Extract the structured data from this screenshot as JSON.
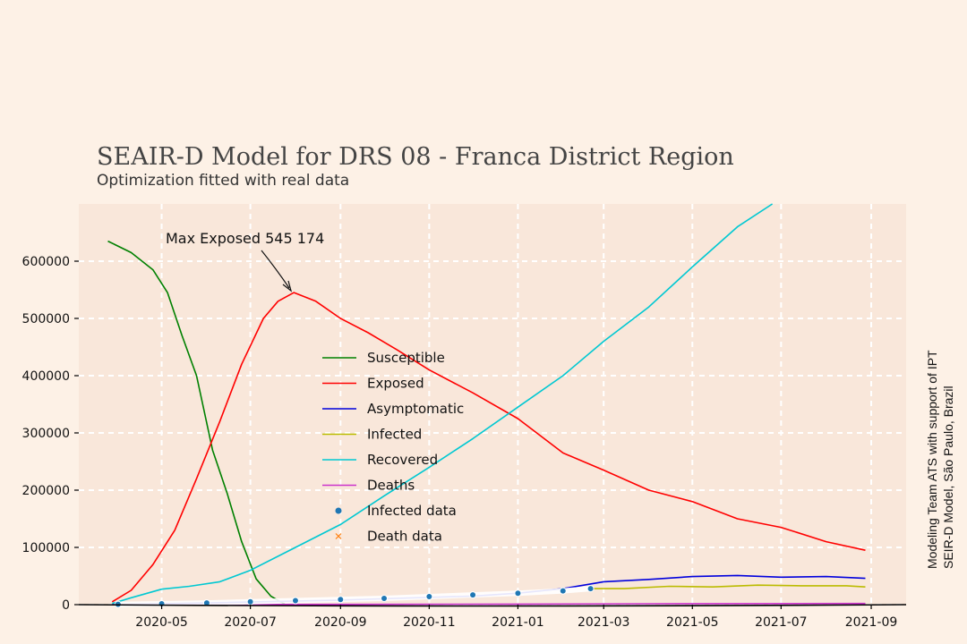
{
  "chart_data": {
    "type": "line",
    "title": "SEAIR-D Model for DRS 08 - Franca District Region",
    "subtitle": "Optimization fitted with real data",
    "annotation": {
      "label": "Max Exposed 545 174",
      "x": "2020-07-31",
      "y": 545174
    },
    "credit": {
      "line1": "Modeling Team ATS with support of IPT",
      "line2": "SEIR-D Model, São Paulo, Brazil"
    },
    "xlim": [
      "2020-03-05",
      "2021-09-25"
    ],
    "ylim": [
      0,
      700000
    ],
    "x_ticks": [
      "2020-05",
      "2020-07",
      "2020-09",
      "2020-11",
      "2021-01",
      "2021-03",
      "2021-05",
      "2021-07",
      "2021-09"
    ],
    "y_ticks": [
      0,
      100000,
      200000,
      300000,
      400000,
      500000,
      600000
    ],
    "grid": true,
    "legend_position": "center",
    "series": [
      {
        "name": "Susceptible",
        "color": "#008000",
        "style": "line",
        "x": [
          "2020-03-25",
          "2020-04-10",
          "2020-04-25",
          "2020-05-05",
          "2020-05-15",
          "2020-05-25",
          "2020-06-05",
          "2020-06-15",
          "2020-06-25",
          "2020-07-05",
          "2020-07-15",
          "2020-07-25"
        ],
        "y": [
          635000,
          615000,
          585000,
          545000,
          470000,
          400000,
          270000,
          195000,
          110000,
          45000,
          15000,
          0
        ]
      },
      {
        "name": "Exposed",
        "color": "#ff0000",
        "style": "line",
        "x": [
          "2020-03-28",
          "2020-04-10",
          "2020-04-25",
          "2020-05-10",
          "2020-05-25",
          "2020-06-10",
          "2020-06-25",
          "2020-07-10",
          "2020-07-20",
          "2020-07-31",
          "2020-08-15",
          "2020-09-01",
          "2020-09-20",
          "2020-10-10",
          "2020-11-01",
          "2020-12-01",
          "2021-01-01",
          "2021-02-01",
          "2021-03-01",
          "2021-04-01",
          "2021-05-01",
          "2021-06-01",
          "2021-07-01",
          "2021-08-01",
          "2021-08-28"
        ],
        "y": [
          5000,
          25000,
          70000,
          130000,
          220000,
          320000,
          420000,
          500000,
          530000,
          545174,
          530000,
          500000,
          475000,
          445000,
          410000,
          370000,
          325000,
          265000,
          235000,
          200000,
          180000,
          150000,
          135000,
          110000,
          95000
        ]
      },
      {
        "name": "Asymptomatic",
        "color": "#0000dd",
        "style": "line",
        "x": [
          "2020-03-28",
          "2020-06-01",
          "2020-09-01",
          "2020-12-01",
          "2021-01-01",
          "2021-02-01",
          "2021-03-01",
          "2021-04-01",
          "2021-05-01",
          "2021-06-01",
          "2021-07-01",
          "2021-08-01",
          "2021-08-28"
        ],
        "y": [
          0,
          3000,
          8000,
          15000,
          20000,
          28000,
          40000,
          44000,
          49000,
          51000,
          48000,
          49000,
          46000
        ]
      },
      {
        "name": "Infected",
        "color": "#bbbb00",
        "style": "line",
        "x": [
          "2021-02-20",
          "2021-03-15",
          "2021-04-15",
          "2021-05-15",
          "2021-06-15",
          "2021-07-15",
          "2021-08-15",
          "2021-08-28"
        ],
        "y": [
          28000,
          28000,
          32000,
          31000,
          34000,
          33000,
          33000,
          31000
        ]
      },
      {
        "name": "Recovered",
        "color": "#00c8d2",
        "style": "line",
        "x": [
          "2020-03-28",
          "2020-04-10",
          "2020-05-01",
          "2020-05-20",
          "2020-06-10",
          "2020-07-01",
          "2020-08-01",
          "2020-09-01",
          "2020-10-01",
          "2020-11-01",
          "2020-12-01",
          "2021-01-01",
          "2021-02-01",
          "2021-03-01",
          "2021-04-01",
          "2021-05-01",
          "2021-06-01",
          "2021-06-25"
        ],
        "y": [
          2000,
          12000,
          27000,
          32000,
          40000,
          60000,
          100000,
          140000,
          190000,
          240000,
          290000,
          345000,
          400000,
          460000,
          520000,
          590000,
          660000,
          700000
        ]
      },
      {
        "name": "Deaths",
        "color": "#cc33cc",
        "style": "line",
        "x": [
          "2020-03-28",
          "2020-09-01",
          "2021-01-01",
          "2021-04-01",
          "2021-08-28"
        ],
        "y": [
          0,
          500,
          1000,
          1500,
          2000
        ]
      },
      {
        "name": "Infected data",
        "color": "#1f77b4",
        "style": "points",
        "x": [
          "2020-04-01",
          "2020-05-01",
          "2020-06-01",
          "2020-07-01",
          "2020-08-01",
          "2020-09-01",
          "2020-10-01",
          "2020-11-01",
          "2020-12-01",
          "2021-01-01",
          "2021-02-01",
          "2021-02-20"
        ],
        "y": [
          500,
          1500,
          3000,
          5000,
          7000,
          9000,
          11000,
          14000,
          17000,
          20000,
          24000,
          28000
        ]
      },
      {
        "name": "Death data",
        "color": "#ff7f0e",
        "style": "cross",
        "x": [],
        "y": []
      }
    ]
  }
}
